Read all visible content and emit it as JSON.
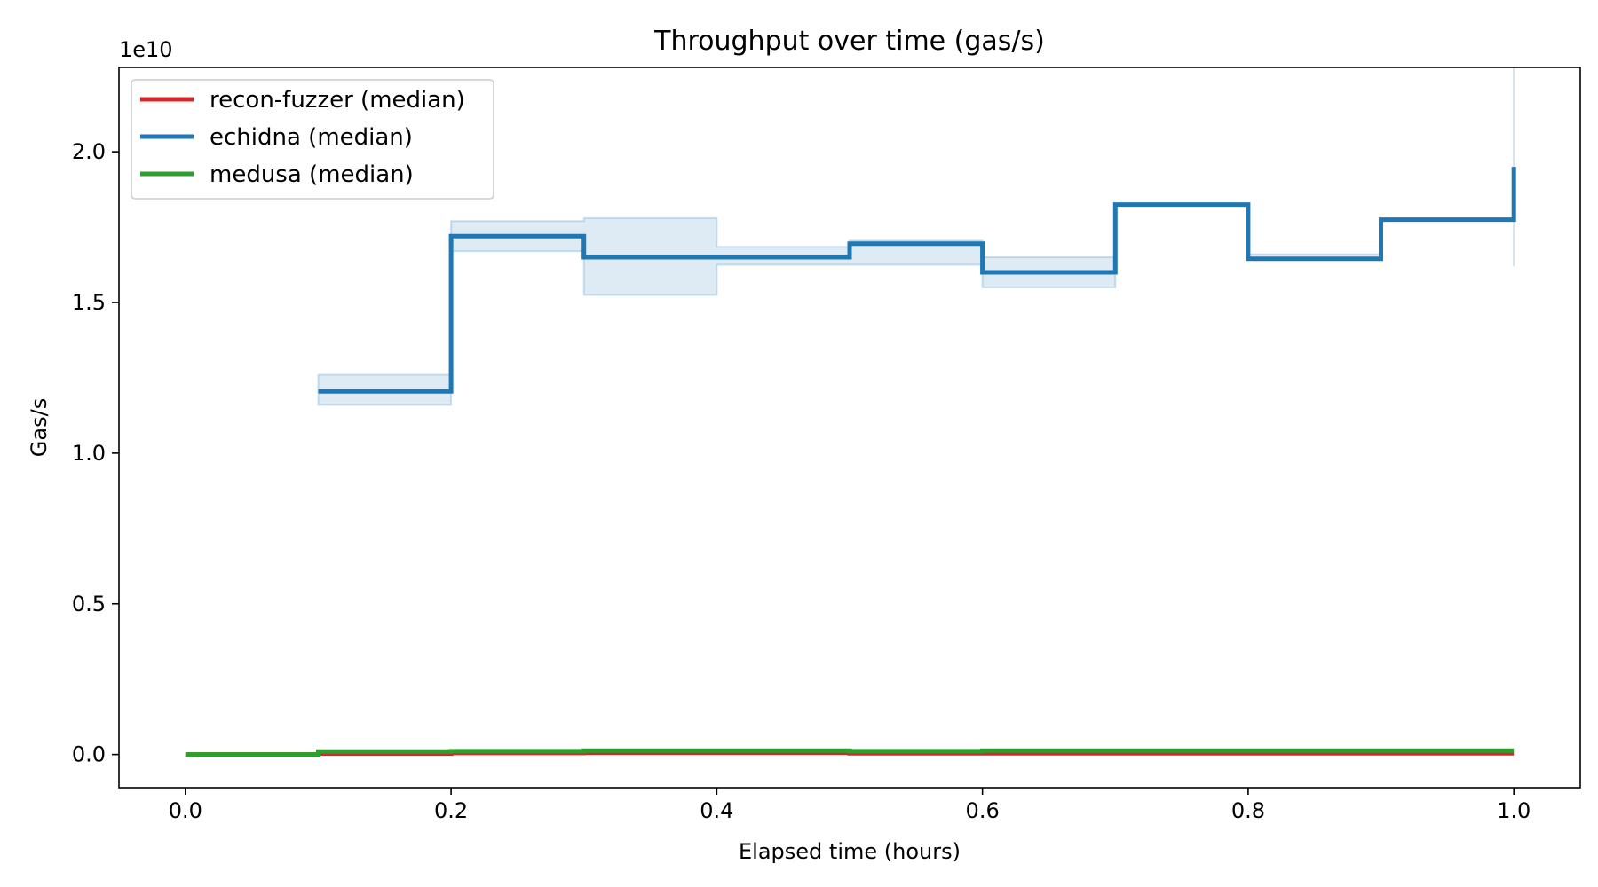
{
  "chart_data": {
    "type": "line",
    "title": "Throughput over time (gas/s)",
    "xlabel": "Elapsed time (hours)",
    "ylabel": "Gas/s",
    "y_offset_label": "1e10",
    "y_scale": 10000000000,
    "xlim": [
      -0.05,
      1.05
    ],
    "ylim": [
      -0.11,
      2.28
    ],
    "x_ticks": [
      0.0,
      0.2,
      0.4,
      0.6,
      0.8,
      1.0
    ],
    "x_tick_labels": [
      "0.0",
      "0.2",
      "0.4",
      "0.6",
      "0.8",
      "1.0"
    ],
    "y_ticks": [
      0.0,
      0.5,
      1.0,
      1.5,
      2.0
    ],
    "y_tick_labels": [
      "0.0",
      "0.5",
      "1.0",
      "1.5",
      "2.0"
    ],
    "grid": false,
    "legend_position": "top-left",
    "step": "post",
    "series": [
      {
        "name": "recon-fuzzer (median)",
        "color": "#d62728",
        "x": [
          0.0,
          0.1,
          0.2,
          0.3,
          0.4,
          0.5,
          0.6,
          0.7,
          0.8,
          0.9,
          1.0
        ],
        "y": [
          0.0,
          0.003,
          0.005,
          0.006,
          0.006,
          0.004,
          0.004,
          0.004,
          0.004,
          0.004,
          0.004
        ],
        "lower": [],
        "upper": []
      },
      {
        "name": "echidna (median)",
        "color": "#1f77b4",
        "x": [
          0.1,
          0.2,
          0.3,
          0.4,
          0.5,
          0.6,
          0.7,
          0.8,
          0.9,
          1.0,
          1.0
        ],
        "y": [
          1.205,
          1.72,
          1.65,
          1.65,
          1.695,
          1.6,
          1.825,
          1.645,
          1.775,
          1.775,
          1.95
        ],
        "lower": [
          1.16,
          1.67,
          1.525,
          1.625,
          1.625,
          1.55,
          1.825,
          1.645,
          1.775,
          1.62,
          1.62
        ],
        "upper": [
          1.26,
          1.77,
          1.78,
          1.685,
          1.705,
          1.65,
          1.825,
          1.66,
          1.775,
          2.28,
          2.28
        ]
      },
      {
        "name": "medusa (median)",
        "color": "#2ca02c",
        "x": [
          0.0,
          0.1,
          0.2,
          0.3,
          0.4,
          0.5,
          0.6,
          0.7,
          0.8,
          0.9,
          1.0
        ],
        "y": [
          0.0,
          0.01,
          0.011,
          0.013,
          0.013,
          0.011,
          0.013,
          0.013,
          0.013,
          0.013,
          0.013
        ],
        "lower": [],
        "upper": []
      }
    ]
  }
}
